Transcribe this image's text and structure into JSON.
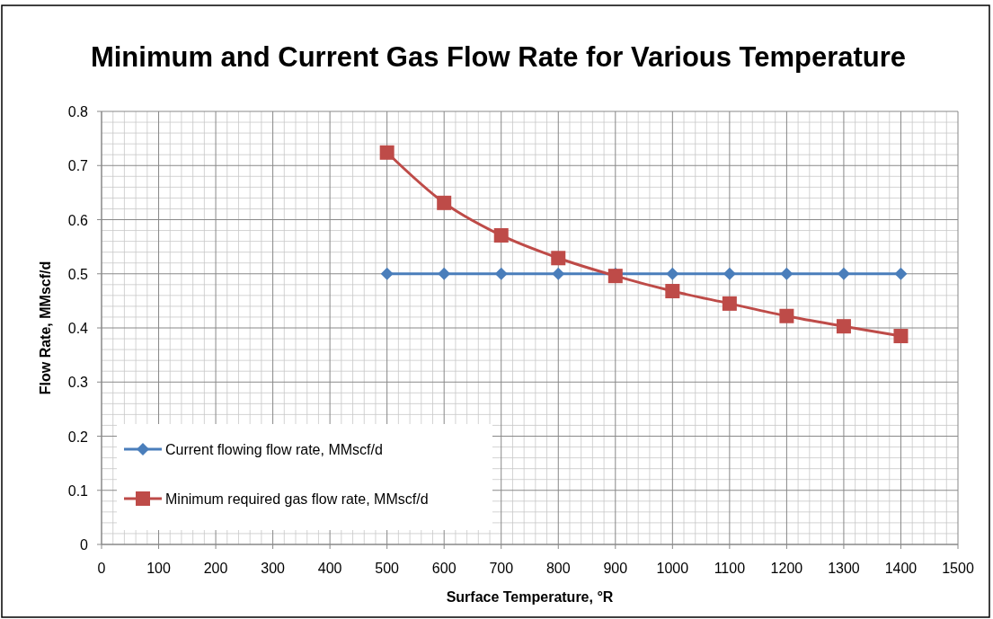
{
  "chart_data": {
    "type": "line",
    "title": "Minimum and Current Gas Flow Rate for Various Temperature",
    "xlabel": "Surface Temperature, °R",
    "ylabel": "Flow Rate, MMscf/d",
    "x": [
      500,
      600,
      700,
      800,
      900,
      1000,
      1100,
      1200,
      1300,
      1400
    ],
    "series": [
      {
        "name": "Current flowing flow rate, MMscf/d",
        "color": "#4a7ebb",
        "marker": "diamond",
        "values": [
          0.5,
          0.5,
          0.5,
          0.5,
          0.5,
          0.5,
          0.5,
          0.5,
          0.5,
          0.5
        ]
      },
      {
        "name": "Minimum required gas flow rate,  MMscf/d",
        "color": "#be4b48",
        "marker": "square",
        "values": [
          0.724,
          0.631,
          0.571,
          0.529,
          0.496,
          0.468,
          0.445,
          0.422,
          0.403,
          0.385
        ]
      }
    ],
    "xlim": [
      0,
      1500
    ],
    "xticks": [
      0,
      100,
      200,
      300,
      400,
      500,
      600,
      700,
      800,
      900,
      1000,
      1100,
      1200,
      1300,
      1400,
      1500
    ],
    "ylim": [
      0,
      0.8
    ],
    "yticks": [
      {
        "value": 0,
        "label": "0"
      },
      {
        "value": 0.1,
        "label": "0.1"
      },
      {
        "value": 0.2,
        "label": "0.2"
      },
      {
        "value": 0.3,
        "label": "0.3"
      },
      {
        "value": 0.4,
        "label": "0.4"
      },
      {
        "value": 0.5,
        "label": "0.5"
      },
      {
        "value": 0.6,
        "label": "0.6"
      },
      {
        "value": 0.7,
        "label": "0.7"
      },
      {
        "value": 0.8,
        "label": "0.8"
      }
    ],
    "grid": true,
    "legend": "bottom left",
    "line_style": "solid"
  }
}
